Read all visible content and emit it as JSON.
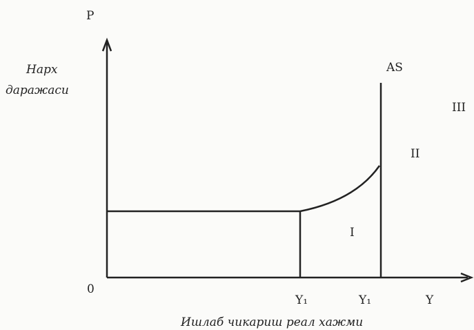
{
  "axes": {
    "y_label": "P",
    "y_title_line1": "Нарх",
    "y_title_line2": "даражаси",
    "origin": "0",
    "x_label": "Y",
    "x_title": "Ишлаб чикариш реал хажми"
  },
  "curve": {
    "label": "AS"
  },
  "regions": [
    "I",
    "II",
    "III"
  ],
  "points": [
    "Y₁",
    "Y₁"
  ]
}
